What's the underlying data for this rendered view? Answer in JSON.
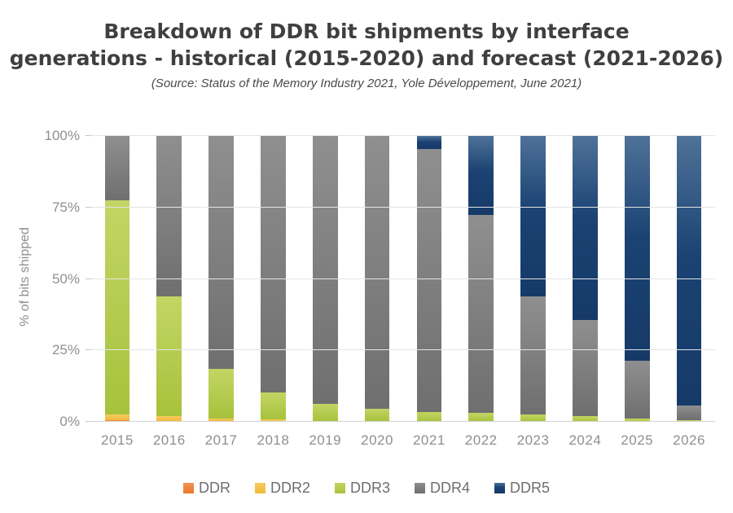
{
  "header": {
    "title": "Breakdown of DDR bit shipments by interface\ngenerations - historical (2015-2020) and forecast (2021-2026)",
    "subtitle": "(Source: Status of the Memory Industry 2021, Yole Développement, June 2021)"
  },
  "chart_data": {
    "type": "bar",
    "stacked": true,
    "unit": "percent",
    "title": "Breakdown of DDR bit shipments by interface generations - historical (2015-2020) and forecast (2021-2026)",
    "subtitle": "(Source: Status of the Memory Industry 2021, Yole Développement, June 2021)",
    "ylabel": "% of bits shipped",
    "xlabel": "",
    "ylim": [
      0,
      100
    ],
    "y_ticks": [
      "0%",
      "25%",
      "50%",
      "75%",
      "100%"
    ],
    "grid": true,
    "legend_position": "bottom",
    "categories": [
      "2015",
      "2016",
      "2017",
      "2018",
      "2019",
      "2020",
      "2021",
      "2022",
      "2023",
      "2024",
      "2025",
      "2026"
    ],
    "series": [
      {
        "name": "DDR",
        "color": "#ED7D31",
        "gradient": [
          "#F2934F",
          "#EB772B"
        ],
        "values": [
          0.5,
          0.4,
          0.2,
          0.1,
          0,
          0,
          0,
          0,
          0,
          0,
          0,
          0
        ]
      },
      {
        "name": "DDR2",
        "color": "#F2C144",
        "gradient": [
          "#F6CC5E",
          "#EFB93B"
        ],
        "values": [
          2.0,
          1.6,
          1.0,
          0.8,
          0.4,
          0.2,
          0,
          0,
          0,
          0,
          0,
          0
        ]
      },
      {
        "name": "DDR3",
        "color": "#B2CC4A",
        "gradient": [
          "#C3D564",
          "#A7C23C"
        ],
        "values": [
          75.0,
          42.0,
          17.2,
          9.3,
          6.0,
          4.3,
          3.5,
          3.0,
          2.7,
          2.0,
          1.1,
          0.7
        ]
      },
      {
        "name": "DDR4",
        "color": "#7F7F7F",
        "gradient": [
          "#8F8F8F",
          "#6F6F6F"
        ],
        "values": [
          22.5,
          56.0,
          81.6,
          89.8,
          93.6,
          95.5,
          92.0,
          69.5,
          41.3,
          33.5,
          20.4,
          5.0
        ]
      },
      {
        "name": "DDR5",
        "color": "#1C4475",
        "gradient": [
          "#4E7298",
          "#1B4273 45%",
          "#163A68"
        ],
        "values": [
          0,
          0,
          0,
          0,
          0,
          0,
          4.5,
          27.5,
          56.0,
          64.5,
          78.5,
          94.3
        ]
      }
    ]
  }
}
